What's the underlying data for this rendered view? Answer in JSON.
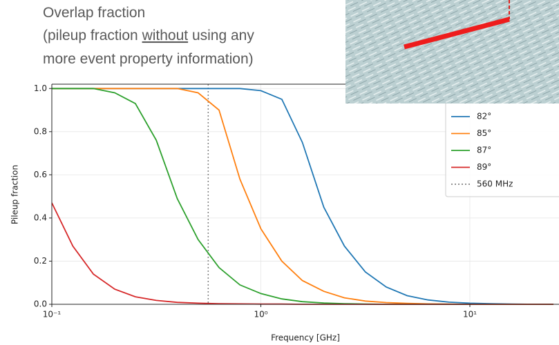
{
  "annotation": {
    "title": "Overlap fraction",
    "line2": [
      "(pileup fraction ",
      "without",
      " using any"
    ],
    "line3": "more event property information)"
  },
  "chart_data": {
    "type": "line",
    "xlabel": "Frequency [GHz]",
    "ylabel": "Pileup fraction",
    "log_x": true,
    "grid": true,
    "x": [
      0.1,
      0.126,
      0.158,
      0.2,
      0.251,
      0.316,
      0.398,
      0.501,
      0.631,
      0.794,
      1,
      1.26,
      1.58,
      2,
      2.51,
      3.16,
      3.98,
      5.01,
      6.31,
      7.94,
      10,
      12.6,
      15.8,
      20,
      25.1
    ],
    "series": [
      {
        "name": "82°",
        "color": "#1f77b4",
        "values": [
          1,
          1,
          1,
          1,
          1,
          1,
          1,
          1,
          1,
          1,
          0.99,
          0.95,
          0.75,
          0.45,
          0.27,
          0.15,
          0.08,
          0.04,
          0.02,
          0.01,
          0.005,
          0.003,
          0.001,
          0,
          0
        ]
      },
      {
        "name": "85°",
        "color": "#ff7f0e",
        "values": [
          1,
          1,
          1,
          1,
          1,
          1,
          1,
          0.98,
          0.9,
          0.58,
          0.35,
          0.2,
          0.11,
          0.06,
          0.03,
          0.015,
          0.008,
          0.004,
          0.002,
          0.001,
          0,
          0,
          0,
          0,
          0
        ]
      },
      {
        "name": "87°",
        "color": "#2ca02c",
        "values": [
          1,
          1,
          1,
          0.98,
          0.93,
          0.76,
          0.49,
          0.3,
          0.17,
          0.09,
          0.05,
          0.025,
          0.012,
          0.006,
          0.003,
          0.001,
          0,
          0,
          0,
          0,
          0,
          0,
          0,
          0,
          0
        ]
      },
      {
        "name": "89°",
        "color": "#d62728",
        "values": [
          0.47,
          0.27,
          0.14,
          0.07,
          0.035,
          0.018,
          0.009,
          0.005,
          0.003,
          0.002,
          0.001,
          0.001,
          0,
          0,
          0,
          0,
          0,
          0,
          0,
          0,
          0,
          0,
          0,
          0,
          0
        ]
      }
    ],
    "vlines": [
      {
        "x": 0.56,
        "name": "560 MHz",
        "color": "#808080"
      }
    ],
    "xlim": [
      0.1,
      26.7
    ],
    "xticks": [
      {
        "value": 0.1,
        "label": "10⁻¹"
      },
      {
        "value": 1,
        "label": "10⁰"
      },
      {
        "value": 10,
        "label": "10¹"
      }
    ],
    "ylim": [
      0,
      1.02
    ],
    "yticks": [
      {
        "value": 0,
        "label": "0.0"
      },
      0.2,
      0.4,
      0.6,
      0.8,
      {
        "value": 1,
        "label": "1.0"
      }
    ]
  }
}
